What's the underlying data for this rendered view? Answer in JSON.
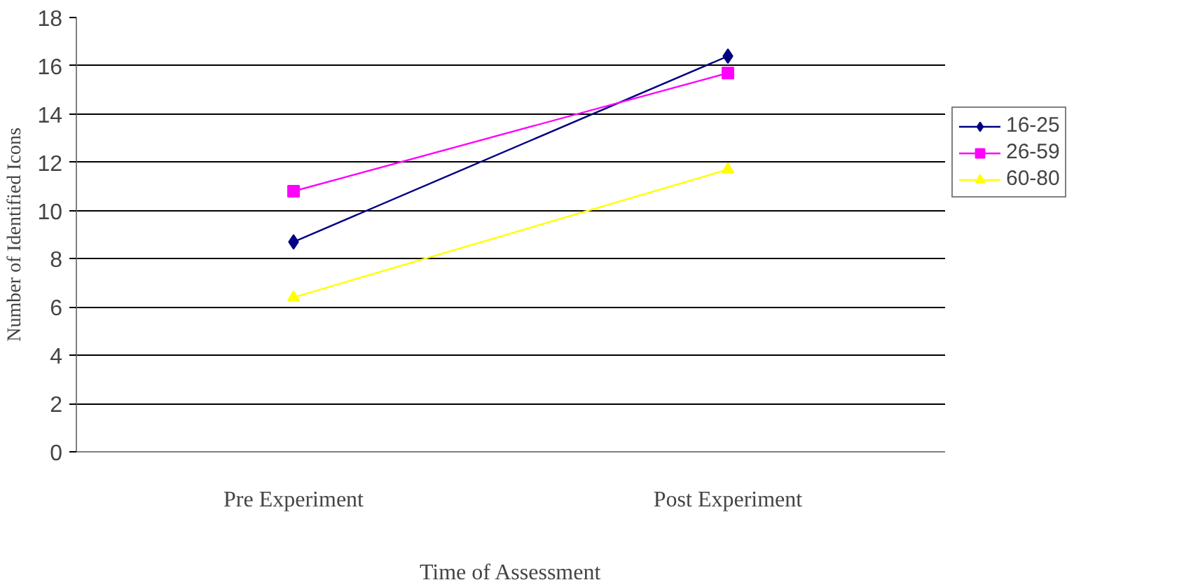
{
  "chart_data": {
    "type": "line",
    "xlabel": "Time of Assessment",
    "ylabel": "Number of Identified Icons",
    "categories": [
      "Pre Experiment",
      "Post Experiment"
    ],
    "series": [
      {
        "name": "16-25",
        "color": "#000080",
        "marker": "diamond",
        "values": [
          8.7,
          16.4
        ]
      },
      {
        "name": "26-59",
        "color": "#ff00ff",
        "marker": "square",
        "values": [
          10.8,
          15.7
        ]
      },
      {
        "name": "60-80",
        "color": "#ffff00",
        "marker": "triangle",
        "values": [
          6.4,
          11.7
        ]
      }
    ],
    "ylim": [
      0,
      18
    ],
    "yticks": [
      0,
      2,
      4,
      6,
      8,
      10,
      12,
      14,
      16,
      18
    ],
    "grid": "y",
    "legend": "right"
  }
}
